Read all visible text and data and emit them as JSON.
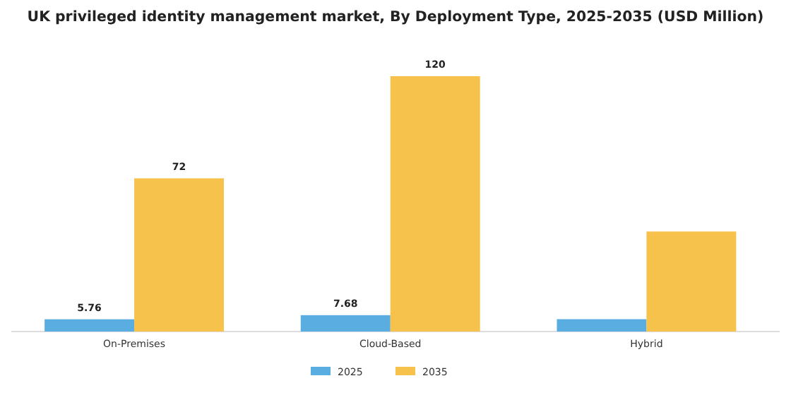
{
  "chart_data": {
    "type": "bar",
    "title": "UK privileged identity management market, By Deployment Type, 2025-2035 (USD Million)",
    "categories": [
      "On-Premises",
      "Cloud-Based",
      "Hybrid"
    ],
    "ylim": [
      0,
      120
    ],
    "legend": "bottom",
    "series": [
      {
        "name": "2025",
        "color": "#5aade0",
        "values": [
          5.76,
          7.68,
          5.8
        ],
        "value_labels": [
          "5.76",
          "7.68",
          null
        ]
      },
      {
        "name": "2035",
        "color": "#f7c24c",
        "values": [
          72,
          120,
          47
        ],
        "value_labels": [
          "72",
          "120",
          null
        ]
      }
    ]
  }
}
